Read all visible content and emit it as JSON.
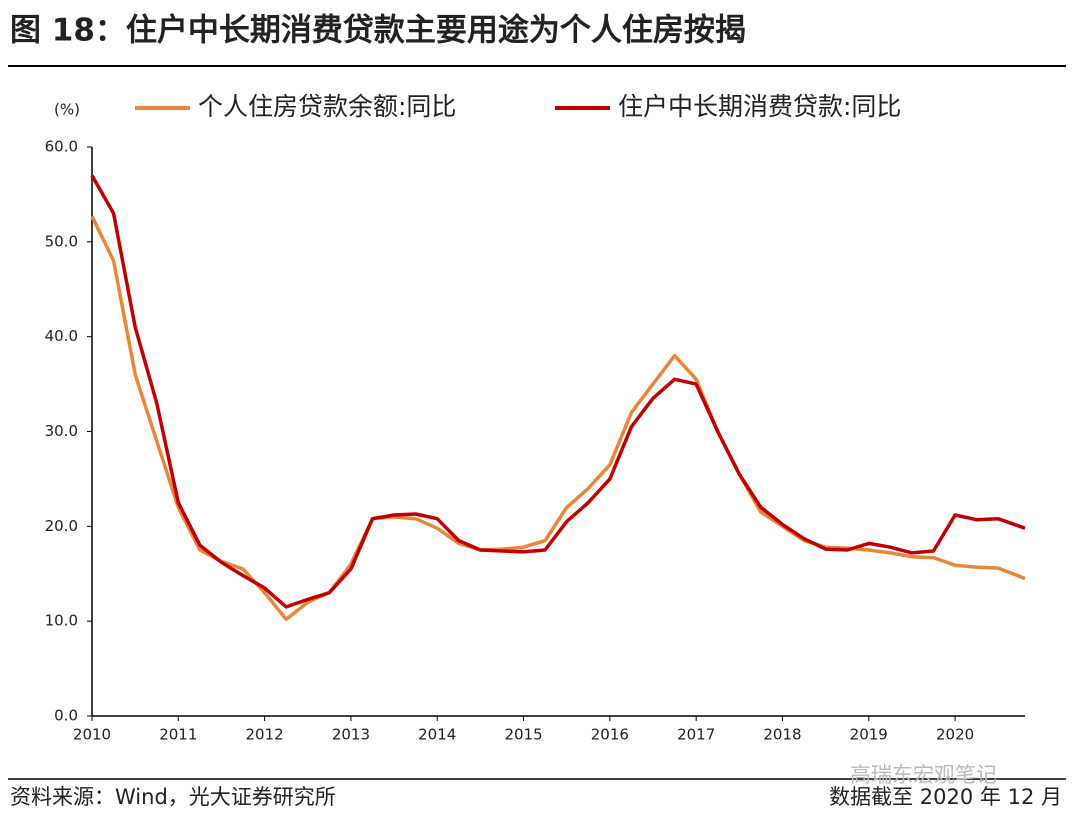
{
  "chart_data": {
    "type": "line",
    "title": "图 18：住户中长期消费贷款主要用途为个人住房按揭",
    "y_unit": "(%)",
    "source": "资料来源：Wind，光大证券研究所",
    "note": "数据截至 2020 年 12 月",
    "watermark": "高瑞东宏观笔记",
    "x": [
      2010.0,
      2010.25,
      2010.5,
      2010.75,
      2011.0,
      2011.25,
      2011.5,
      2011.75,
      2012.0,
      2012.25,
      2012.5,
      2012.75,
      2013.0,
      2013.25,
      2013.5,
      2013.75,
      2014.0,
      2014.25,
      2014.5,
      2014.75,
      2015.0,
      2015.25,
      2015.5,
      2015.75,
      2016.0,
      2016.25,
      2016.5,
      2016.75,
      2017.0,
      2017.25,
      2017.5,
      2017.75,
      2018.0,
      2018.25,
      2018.5,
      2018.75,
      2019.0,
      2019.25,
      2019.5,
      2019.75,
      2020.0,
      2020.25,
      2020.5,
      2020.81
    ],
    "series": [
      {
        "name": "个人住房贷款余额:同比",
        "color": "#e8873a",
        "values": [
          52.7,
          48,
          36,
          29,
          22,
          17.5,
          16.3,
          15.5,
          13,
          10.2,
          12,
          13,
          16,
          20.8,
          21,
          20.8,
          19.8,
          18.2,
          17.5,
          17.6,
          17.8,
          18.5,
          22,
          24,
          26.5,
          32,
          35,
          38,
          35.5,
          30,
          25.5,
          21.5,
          20,
          18.5,
          17.8,
          17.7,
          17.5,
          17.2,
          16.8,
          16.7,
          15.9,
          15.7,
          15.6,
          14.5
        ]
      },
      {
        "name": "住户中长期消费贷款:同比",
        "color": "#c00000",
        "values": [
          57,
          53,
          41,
          33,
          22.5,
          18,
          16.2,
          14.8,
          13.5,
          11.5,
          12.3,
          13,
          15.5,
          20.8,
          21.2,
          21.3,
          20.8,
          18.5,
          17.5,
          17.4,
          17.3,
          17.5,
          20.5,
          22.5,
          25,
          30.5,
          33.5,
          35.5,
          35,
          30,
          25.5,
          22,
          20.2,
          18.7,
          17.6,
          17.5,
          18.2,
          17.8,
          17.2,
          17.4,
          21.2,
          20.7,
          20.8,
          19.8
        ]
      }
    ],
    "xlim": [
      2010,
      2020.81
    ],
    "xticks": [
      2010,
      2011,
      2012,
      2013,
      2014,
      2015,
      2016,
      2017,
      2018,
      2019,
      2020
    ],
    "ylim": [
      0,
      60
    ],
    "yticks": [
      {
        "value": 0,
        "label": "0.0"
      },
      {
        "value": 10,
        "label": "10.0"
      },
      {
        "value": 20,
        "label": "20.0"
      },
      {
        "value": 30,
        "label": "30.0"
      },
      {
        "value": 40,
        "label": "40.0"
      },
      {
        "value": 50,
        "label": "50.0"
      },
      {
        "value": 60,
        "label": "60.0"
      }
    ],
    "grid": false
  }
}
